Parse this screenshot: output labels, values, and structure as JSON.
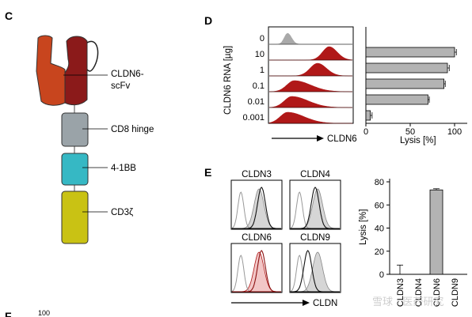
{
  "figure": {
    "panel_c": {
      "letter": "C",
      "domains": [
        {
          "name": "scfv",
          "label_lines": [
            "CLDN6-",
            "scFv"
          ],
          "colors": [
            "#c8451e",
            "#8b1a1a"
          ]
        },
        {
          "name": "cd8",
          "label": "CD8 hinge",
          "color": "#9aa3a8"
        },
        {
          "name": "41bb",
          "label": "4-1BB",
          "color": "#36b8c4"
        },
        {
          "name": "cd3z",
          "label": "CD3ζ",
          "color": "#c9c214"
        }
      ]
    },
    "panel_d": {
      "letter": "D",
      "rna_axis_label": "CLDN6 RNA [µg]",
      "x_label": "CLDN6",
      "doses": [
        "0",
        "10",
        "1",
        "0.1",
        "0.01",
        "0.001"
      ],
      "histogram_peaks": [
        0.22,
        0.72,
        0.58,
        0.3,
        0.27,
        0.22
      ],
      "histogram_colors": {
        "control": "#a9a9a9",
        "transfected": "#b01818"
      }
    },
    "panel_e": {
      "letter": "E",
      "histograms": [
        {
          "label": "CLDN3",
          "stain_peak": 0.6
        },
        {
          "label": "CLDN4",
          "stain_peak": 0.5
        },
        {
          "label": "CLDN6",
          "stain_peak": 0.6
        },
        {
          "label": "CLDN9",
          "stain_peak": 0.35
        }
      ],
      "x_label": "CLDN"
    },
    "partial_next": {
      "letter": "F",
      "text": "100"
    },
    "watermark": "雪球 · 医药研究"
  },
  "chart_data": [
    {
      "type": "bar",
      "orientation": "horizontal",
      "categories": [
        "10",
        "1",
        "0.1",
        "0.01",
        "0.001"
      ],
      "values": [
        100,
        92,
        88,
        70,
        5
      ],
      "errors": [
        2,
        2,
        1.5,
        1.5,
        2
      ],
      "xlabel": "Lysis [%]",
      "xlim": [
        0,
        110
      ],
      "xticks": [
        "0",
        "50",
        "100"
      ],
      "color": "#b3b3b3"
    },
    {
      "type": "bar",
      "categories": [
        "CLDN3",
        "CLDN4",
        "CLDN6",
        "CLDN9"
      ],
      "values": [
        0,
        0,
        73,
        0
      ],
      "errors": [
        8,
        0,
        1,
        0
      ],
      "ylabel": "Lysis [%]",
      "ylim": [
        0,
        80
      ],
      "yticks": [
        "0",
        "20",
        "40",
        "60",
        "80"
      ],
      "color": "#b3b3b3"
    }
  ]
}
